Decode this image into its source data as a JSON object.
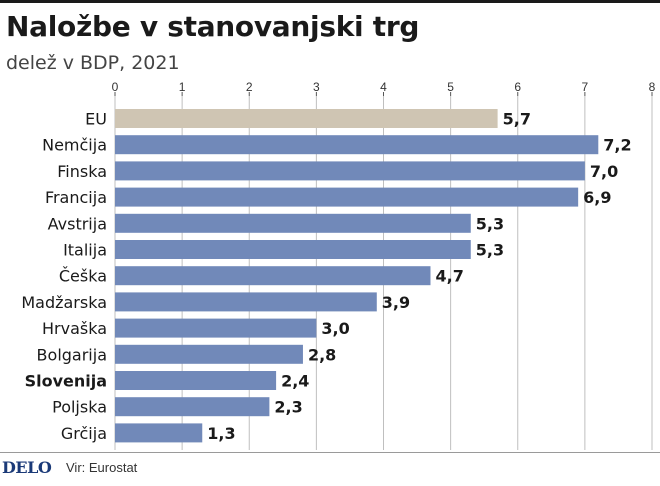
{
  "header": {
    "title": "Naložbe v stanovanjski trg",
    "subtitle": "delež v BDP, 2021"
  },
  "footer": {
    "logo": "DELO",
    "source": "Vir: Eurostat"
  },
  "colors": {
    "bar": "#7189b9",
    "highlight": "#cfc5b3",
    "grid": "#bfbfbf",
    "text": "#1a1a1a"
  },
  "chart_data": {
    "type": "bar",
    "orientation": "horizontal",
    "title": "Naložbe v stanovanjski trg",
    "subtitle": "delež v BDP, 2021",
    "categories": [
      "EU",
      "Nemčija",
      "Finska",
      "Francija",
      "Avstrija",
      "Italija",
      "Češka",
      "Madžarska",
      "Hrvaška",
      "Bolgarija",
      "Slovenija",
      "Poljska",
      "Grčija"
    ],
    "values": [
      5.7,
      7.2,
      7.0,
      6.9,
      5.3,
      5.3,
      4.7,
      3.9,
      3.0,
      2.8,
      2.4,
      2.3,
      1.3
    ],
    "value_labels": [
      "5,7",
      "7,2",
      "7,0",
      "6,9",
      "5,3",
      "5,3",
      "4,7",
      "3,9",
      "3,0",
      "2,8",
      "2,4",
      "2,3",
      "1,3"
    ],
    "highlighted_category": "EU",
    "bold_category": "Slovenija",
    "xlim": [
      0,
      8
    ],
    "xticks": [
      0,
      1,
      2,
      3,
      4,
      5,
      6,
      7,
      8
    ],
    "xtick_labels": [
      "0",
      "1",
      "2",
      "3",
      "4",
      "5",
      "6",
      "7",
      "8"
    ],
    "xaxis_position": "top",
    "grid": true
  }
}
